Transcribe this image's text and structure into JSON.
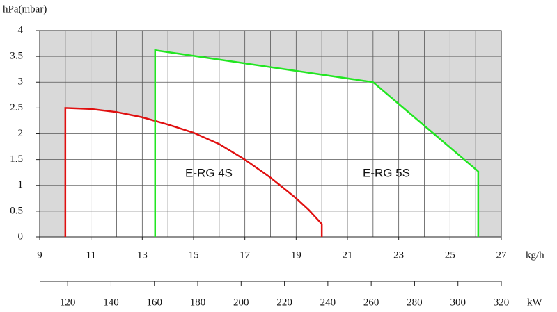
{
  "chart_data": {
    "type": "line",
    "y_label": "hPa(mbar)",
    "x_label": "kg/h",
    "x2_label": "kW",
    "xlim": [
      9,
      27
    ],
    "xticks": [
      9,
      11,
      13,
      15,
      17,
      19,
      21,
      23,
      25,
      27
    ],
    "ylim": [
      0,
      4
    ],
    "yticks": [
      0,
      0.5,
      1,
      1.5,
      2,
      2.5,
      3,
      3.5,
      4
    ],
    "x2lim": [
      107.1,
      320
    ],
    "x2ticks": [
      120,
      140,
      160,
      180,
      200,
      220,
      240,
      260,
      280,
      300,
      320
    ],
    "grid": true,
    "background": "#d9d9d9",
    "area_color": "#ffffff",
    "series": [
      {
        "name": "E-RG 4S",
        "color": "#e01010",
        "x": [
          10,
          10,
          11,
          12,
          13,
          14,
          15,
          16,
          17,
          18,
          19,
          19.5,
          20,
          20
        ],
        "values": [
          0,
          2.5,
          2.48,
          2.42,
          2.32,
          2.18,
          2.02,
          1.8,
          1.5,
          1.15,
          0.75,
          0.52,
          0.25,
          0
        ]
      },
      {
        "name": "E-RG 5S",
        "color": "#22e622",
        "x": [
          13.5,
          13.5,
          22,
          26.1,
          26.1
        ],
        "values": [
          0,
          3.62,
          3.0,
          1.27,
          0
        ]
      }
    ]
  }
}
